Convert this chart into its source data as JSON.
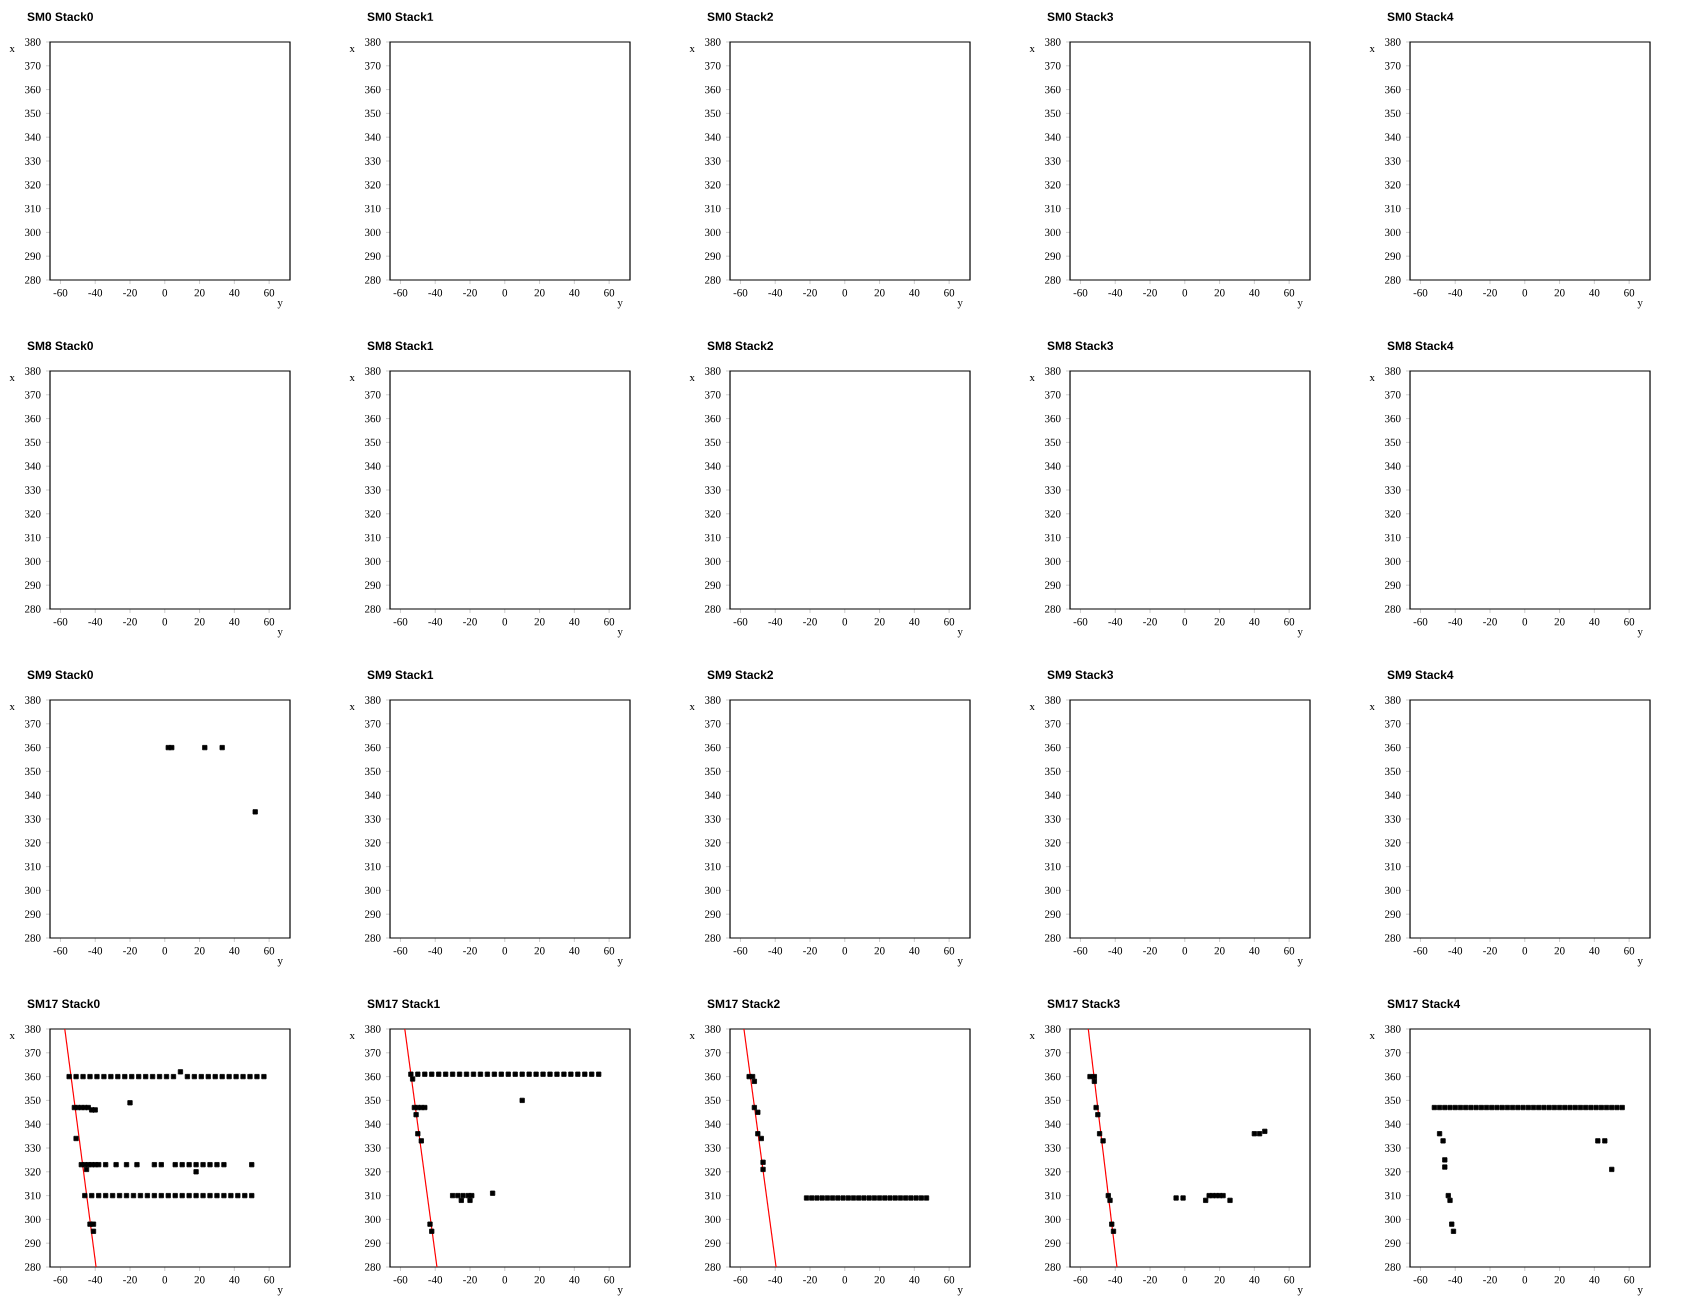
{
  "chart_data": [
    {
      "type": "scatter",
      "title": "SM0 Stack0",
      "xlabel": "y",
      "ylabel": "x",
      "xlim": [
        -66,
        72
      ],
      "ylim": [
        280,
        380
      ],
      "xticks": [
        -60,
        -40,
        -20,
        0,
        20,
        40,
        60
      ],
      "yticks": [
        280,
        290,
        300,
        310,
        320,
        330,
        340,
        350,
        360,
        370,
        380
      ]
    },
    {
      "type": "scatter",
      "title": "SM0 Stack1",
      "xlabel": "y",
      "ylabel": "x",
      "xlim": [
        -66,
        72
      ],
      "ylim": [
        280,
        380
      ],
      "xticks": [
        -60,
        -40,
        -20,
        0,
        20,
        40,
        60
      ],
      "yticks": [
        280,
        290,
        300,
        310,
        320,
        330,
        340,
        350,
        360,
        370,
        380
      ]
    },
    {
      "type": "scatter",
      "title": "SM0 Stack2",
      "xlabel": "y",
      "ylabel": "x",
      "xlim": [
        -66,
        72
      ],
      "ylim": [
        280,
        380
      ],
      "xticks": [
        -60,
        -40,
        -20,
        0,
        20,
        40,
        60
      ],
      "yticks": [
        280,
        290,
        300,
        310,
        320,
        330,
        340,
        350,
        360,
        370,
        380
      ]
    },
    {
      "type": "scatter",
      "title": "SM0 Stack3",
      "xlabel": "y",
      "ylabel": "x",
      "xlim": [
        -66,
        72
      ],
      "ylim": [
        280,
        380
      ],
      "xticks": [
        -60,
        -40,
        -20,
        0,
        20,
        40,
        60
      ],
      "yticks": [
        280,
        290,
        300,
        310,
        320,
        330,
        340,
        350,
        360,
        370,
        380
      ]
    },
    {
      "type": "scatter",
      "title": "SM0 Stack4",
      "xlabel": "y",
      "ylabel": "x",
      "xlim": [
        -66,
        72
      ],
      "ylim": [
        280,
        380
      ],
      "xticks": [
        -60,
        -40,
        -20,
        0,
        20,
        40,
        60
      ],
      "yticks": [
        280,
        290,
        300,
        310,
        320,
        330,
        340,
        350,
        360,
        370,
        380
      ]
    },
    {
      "type": "scatter",
      "title": "SM8 Stack0",
      "xlabel": "y",
      "ylabel": "x",
      "xlim": [
        -66,
        72
      ],
      "ylim": [
        280,
        380
      ],
      "xticks": [
        -60,
        -40,
        -20,
        0,
        20,
        40,
        60
      ],
      "yticks": [
        280,
        290,
        300,
        310,
        320,
        330,
        340,
        350,
        360,
        370,
        380
      ]
    },
    {
      "type": "scatter",
      "title": "SM8 Stack1",
      "xlabel": "y",
      "ylabel": "x",
      "xlim": [
        -66,
        72
      ],
      "ylim": [
        280,
        380
      ],
      "xticks": [
        -60,
        -40,
        -20,
        0,
        20,
        40,
        60
      ],
      "yticks": [
        280,
        290,
        300,
        310,
        320,
        330,
        340,
        350,
        360,
        370,
        380
      ]
    },
    {
      "type": "scatter",
      "title": "SM8 Stack2",
      "xlabel": "y",
      "ylabel": "x",
      "xlim": [
        -66,
        72
      ],
      "ylim": [
        280,
        380
      ],
      "xticks": [
        -60,
        -40,
        -20,
        0,
        20,
        40,
        60
      ],
      "yticks": [
        280,
        290,
        300,
        310,
        320,
        330,
        340,
        350,
        360,
        370,
        380
      ]
    },
    {
      "type": "scatter",
      "title": "SM8 Stack3",
      "xlabel": "y",
      "ylabel": "x",
      "xlim": [
        -66,
        72
      ],
      "ylim": [
        280,
        380
      ],
      "xticks": [
        -60,
        -40,
        -20,
        0,
        20,
        40,
        60
      ],
      "yticks": [
        280,
        290,
        300,
        310,
        320,
        330,
        340,
        350,
        360,
        370,
        380
      ]
    },
    {
      "type": "scatter",
      "title": "SM8 Stack4",
      "xlabel": "y",
      "ylabel": "x",
      "xlim": [
        -66,
        72
      ],
      "ylim": [
        280,
        380
      ],
      "xticks": [
        -60,
        -40,
        -20,
        0,
        20,
        40,
        60
      ],
      "yticks": [
        280,
        290,
        300,
        310,
        320,
        330,
        340,
        350,
        360,
        370,
        380
      ]
    },
    {
      "type": "scatter",
      "title": "SM9 Stack0",
      "xlabel": "y",
      "ylabel": "x",
      "xlim": [
        -66,
        72
      ],
      "ylim": [
        280,
        380
      ],
      "xticks": [
        -60,
        -40,
        -20,
        0,
        20,
        40,
        60
      ],
      "yticks": [
        280,
        290,
        300,
        310,
        320,
        330,
        340,
        350,
        360,
        370,
        380
      ],
      "series": [
        {
          "color": "#000000",
          "marker": "square",
          "x": [
            2,
            4,
            23,
            33,
            52
          ],
          "values": [
            360,
            360,
            360,
            360,
            333
          ]
        }
      ]
    },
    {
      "type": "scatter",
      "title": "SM9 Stack1",
      "xlabel": "y",
      "ylabel": "x",
      "xlim": [
        -66,
        72
      ],
      "ylim": [
        280,
        380
      ],
      "xticks": [
        -60,
        -40,
        -20,
        0,
        20,
        40,
        60
      ],
      "yticks": [
        280,
        290,
        300,
        310,
        320,
        330,
        340,
        350,
        360,
        370,
        380
      ]
    },
    {
      "type": "scatter",
      "title": "SM9 Stack2",
      "xlabel": "y",
      "ylabel": "x",
      "xlim": [
        -66,
        72
      ],
      "ylim": [
        280,
        380
      ],
      "xticks": [
        -60,
        -40,
        -20,
        0,
        20,
        40,
        60
      ],
      "yticks": [
        280,
        290,
        300,
        310,
        320,
        330,
        340,
        350,
        360,
        370,
        380
      ]
    },
    {
      "type": "scatter",
      "title": "SM9 Stack3",
      "xlabel": "y",
      "ylabel": "x",
      "xlim": [
        -66,
        72
      ],
      "ylim": [
        280,
        380
      ],
      "xticks": [
        -60,
        -40,
        -20,
        0,
        20,
        40,
        60
      ],
      "yticks": [
        280,
        290,
        300,
        310,
        320,
        330,
        340,
        350,
        360,
        370,
        380
      ]
    },
    {
      "type": "scatter",
      "title": "SM9 Stack4",
      "xlabel": "y",
      "ylabel": "x",
      "xlim": [
        -66,
        72
      ],
      "ylim": [
        280,
        380
      ],
      "xticks": [
        -60,
        -40,
        -20,
        0,
        20,
        40,
        60
      ],
      "yticks": [
        280,
        290,
        300,
        310,
        320,
        330,
        340,
        350,
        360,
        370,
        380
      ]
    },
    {
      "type": "scatter",
      "title": "SM17 Stack0",
      "xlabel": "y",
      "ylabel": "x",
      "xlim": [
        -66,
        72
      ],
      "ylim": [
        280,
        380
      ],
      "xticks": [
        -60,
        -40,
        -20,
        0,
        20,
        40,
        60
      ],
      "yticks": [
        280,
        290,
        300,
        310,
        320,
        330,
        340,
        350,
        360,
        370,
        380
      ],
      "series": [
        {
          "color": "#000000",
          "marker": "square",
          "x": [
            -55,
            -51,
            -47,
            -43,
            -39,
            -35,
            -31,
            -27,
            -23,
            -19,
            -15,
            -11,
            -7,
            -3,
            1,
            5,
            9,
            13,
            17,
            21,
            25,
            29,
            33,
            37,
            41,
            45,
            49,
            53,
            57,
            -52,
            -50,
            -48,
            -46,
            -44,
            -42,
            -40,
            -20,
            -51,
            -48,
            -46,
            -44,
            -42,
            -40,
            -38,
            -34,
            -28,
            -22,
            -16,
            -6,
            -2,
            6,
            10,
            14,
            18,
            22,
            26,
            30,
            34,
            50,
            -45,
            18,
            -46,
            -42,
            -38,
            -34,
            -30,
            -26,
            -22,
            -18,
            -14,
            -10,
            -6,
            -2,
            2,
            6,
            10,
            14,
            18,
            22,
            26,
            30,
            34,
            38,
            42,
            46,
            50,
            -43,
            -41,
            -41
          ],
          "values": [
            360,
            360,
            360,
            360,
            360,
            360,
            360,
            360,
            360,
            360,
            360,
            360,
            360,
            360,
            360,
            360,
            362,
            360,
            360,
            360,
            360,
            360,
            360,
            360,
            360,
            360,
            360,
            360,
            360,
            347,
            347,
            347,
            347,
            347,
            346,
            346,
            349,
            334,
            323,
            323,
            323,
            323,
            323,
            323,
            323,
            323,
            323,
            323,
            323,
            323,
            323,
            323,
            323,
            323,
            323,
            323,
            323,
            323,
            323,
            321,
            320,
            310,
            310,
            310,
            310,
            310,
            310,
            310,
            310,
            310,
            310,
            310,
            310,
            310,
            310,
            310,
            310,
            310,
            310,
            310,
            310,
            310,
            310,
            310,
            310,
            310,
            298,
            298,
            295
          ]
        },
        {
          "type": "line",
          "color": "#ff0000",
          "x": [
            -57.5,
            -39.5
          ],
          "values": [
            380,
            280
          ]
        }
      ]
    },
    {
      "type": "scatter",
      "title": "SM17 Stack1",
      "xlabel": "y",
      "ylabel": "x",
      "xlim": [
        -66,
        72
      ],
      "ylim": [
        280,
        380
      ],
      "xticks": [
        -60,
        -40,
        -20,
        0,
        20,
        40,
        60
      ],
      "yticks": [
        280,
        290,
        300,
        310,
        320,
        330,
        340,
        350,
        360,
        370,
        380
      ],
      "series": [
        {
          "color": "#000000",
          "marker": "square",
          "x": [
            -54,
            -50,
            -46,
            -42,
            -38,
            -34,
            -30,
            -26,
            -22,
            -18,
            -14,
            -10,
            -6,
            -2,
            2,
            6,
            10,
            14,
            18,
            22,
            26,
            30,
            34,
            38,
            42,
            46,
            50,
            54,
            -53,
            10,
            -52,
            -50,
            -48,
            -46,
            -51,
            -50,
            -48,
            -30,
            -27,
            -24,
            -21,
            -19,
            -25,
            -20,
            -7,
            -43,
            -42
          ],
          "values": [
            361,
            361,
            361,
            361,
            361,
            361,
            361,
            361,
            361,
            361,
            361,
            361,
            361,
            361,
            361,
            361,
            361,
            361,
            361,
            361,
            361,
            361,
            361,
            361,
            361,
            361,
            361,
            361,
            359,
            350,
            347,
            347,
            347,
            347,
            344,
            336,
            333,
            310,
            310,
            310,
            310,
            310,
            308,
            308,
            311,
            298,
            295
          ]
        },
        {
          "type": "line",
          "color": "#ff0000",
          "x": [
            -57.5,
            -39
          ],
          "values": [
            380,
            280
          ]
        }
      ]
    },
    {
      "type": "scatter",
      "title": "SM17 Stack2",
      "xlabel": "y",
      "ylabel": "x",
      "xlim": [
        -66,
        72
      ],
      "ylim": [
        280,
        380
      ],
      "xticks": [
        -60,
        -40,
        -20,
        0,
        20,
        40,
        60
      ],
      "yticks": [
        280,
        290,
        300,
        310,
        320,
        330,
        340,
        350,
        360,
        370,
        380
      ],
      "series": [
        {
          "color": "#000000",
          "marker": "square",
          "x": [
            -55,
            -53,
            -52,
            -52,
            -50,
            -50,
            -48,
            -47,
            -47,
            -22,
            -19,
            -16,
            -13,
            -10,
            -7,
            -4,
            -1,
            2,
            5,
            8,
            11,
            14,
            17,
            20,
            23,
            26,
            29,
            32,
            35,
            38,
            41,
            44,
            47
          ],
          "values": [
            360,
            360,
            358,
            347,
            345,
            336,
            334,
            324,
            321,
            309,
            309,
            309,
            309,
            309,
            309,
            309,
            309,
            309,
            309,
            309,
            309,
            309,
            309,
            309,
            309,
            309,
            309,
            309,
            309,
            309,
            309,
            309,
            309
          ]
        },
        {
          "type": "line",
          "color": "#ff0000",
          "x": [
            -58,
            -39.5
          ],
          "values": [
            380,
            280
          ]
        }
      ]
    },
    {
      "type": "scatter",
      "title": "SM17 Stack3",
      "xlabel": "y",
      "ylabel": "x",
      "xlim": [
        -66,
        72
      ],
      "ylim": [
        280,
        380
      ],
      "xticks": [
        -60,
        -40,
        -20,
        0,
        20,
        40,
        60
      ],
      "yticks": [
        280,
        290,
        300,
        310,
        320,
        330,
        340,
        350,
        360,
        370,
        380
      ],
      "series": [
        {
          "color": "#000000",
          "marker": "square",
          "x": [
            -54.5,
            -52,
            -52,
            -51,
            -50,
            -49,
            -47,
            -44,
            -43,
            -42,
            -41,
            -5,
            -1,
            14,
            16,
            18,
            20,
            22,
            12,
            26,
            40,
            43,
            46
          ],
          "values": [
            360,
            360,
            358,
            347,
            344,
            336,
            333,
            310,
            308,
            298,
            295,
            309,
            309,
            310,
            310,
            310,
            310,
            310,
            308,
            308,
            336,
            336,
            337
          ]
        },
        {
          "type": "line",
          "color": "#ff0000",
          "x": [
            -55.5,
            -39
          ],
          "values": [
            380,
            280
          ]
        }
      ]
    },
    {
      "type": "scatter",
      "title": "SM17 Stack4",
      "xlabel": "y",
      "ylabel": "x",
      "xlim": [
        -66,
        72
      ],
      "ylim": [
        280,
        380
      ],
      "xticks": [
        -60,
        -40,
        -20,
        0,
        20,
        40,
        60
      ],
      "yticks": [
        280,
        290,
        300,
        310,
        320,
        330,
        340,
        350,
        360,
        370,
        380
      ],
      "series": [
        {
          "color": "#000000",
          "marker": "square",
          "x": [
            -52,
            -49,
            -46,
            -43,
            -40,
            -37,
            -34,
            -31,
            -28,
            -25,
            -22,
            -19,
            -16,
            -13,
            -10,
            -7,
            -4,
            -1,
            2,
            5,
            8,
            11,
            14,
            17,
            20,
            23,
            26,
            29,
            32,
            35,
            38,
            41,
            44,
            47,
            50,
            53,
            56,
            -49,
            -47,
            -46,
            -46,
            -44,
            -43,
            -42,
            -41,
            42,
            46,
            50
          ],
          "values": [
            347,
            347,
            347,
            347,
            347,
            347,
            347,
            347,
            347,
            347,
            347,
            347,
            347,
            347,
            347,
            347,
            347,
            347,
            347,
            347,
            347,
            347,
            347,
            347,
            347,
            347,
            347,
            347,
            347,
            347,
            347,
            347,
            347,
            347,
            347,
            347,
            347,
            336,
            333,
            325,
            322,
            310,
            308,
            298,
            295,
            333,
            333,
            321
          ]
        }
      ]
    }
  ]
}
